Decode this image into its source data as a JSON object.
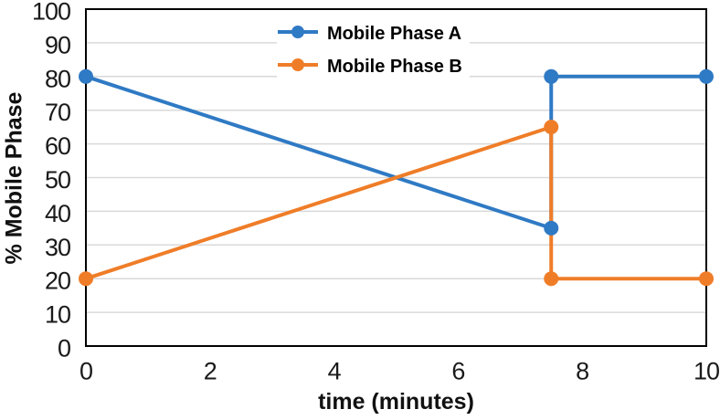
{
  "figure": {
    "background": "#ffffff"
  },
  "chart_data": {
    "type": "line",
    "title": "",
    "xlabel": "time (minutes)",
    "ylabel": "% Mobile Phase",
    "xlim": [
      0,
      10
    ],
    "ylim": [
      0,
      100
    ],
    "xticks": [
      0,
      2,
      4,
      6,
      8,
      10
    ],
    "yticks": [
      0,
      10,
      20,
      30,
      40,
      50,
      60,
      70,
      80,
      90,
      100
    ],
    "grid": "horizontal",
    "gridline_color": "#d9d9d9",
    "axis_color": "#000000",
    "tick_label_color": "#1a1a1a",
    "legend_position": "top-inside",
    "series": [
      {
        "name": "Mobile Phase A",
        "color": "#2f7ac4",
        "marker": "circle",
        "points": [
          [
            0,
            80
          ],
          [
            7.5,
            35
          ],
          [
            7.5,
            80
          ],
          [
            10,
            80
          ]
        ]
      },
      {
        "name": "Mobile Phase B",
        "color": "#ef7d28",
        "marker": "circle",
        "points": [
          [
            0,
            20
          ],
          [
            7.5,
            65
          ],
          [
            7.5,
            20
          ],
          [
            10,
            20
          ]
        ]
      }
    ]
  }
}
